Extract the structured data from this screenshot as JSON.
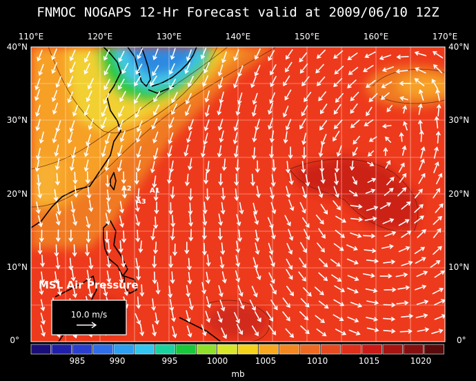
{
  "title": "FNMOC NOGAPS 12-Hr Forecast valid at 2009/06/10 12Z",
  "longitudes": [
    "110°E",
    "120°E",
    "130°E",
    "140°E",
    "150°E",
    "160°E",
    "170°E"
  ],
  "latitudes_left": [
    "40°N",
    "30°N",
    "20°N",
    "10°N",
    "0°"
  ],
  "latitudes_right": [
    "40°N",
    "30°N",
    "20°N",
    "10°N",
    "0°"
  ],
  "variable_label": "MSL Air Pressure",
  "reference_vector_label": "10.0 m/s",
  "points": [
    "A1",
    "A2",
    "A3"
  ],
  "colorbar": {
    "labels": [
      "985",
      "990",
      "995",
      "1000",
      "1005",
      "1010",
      "1015",
      "1020"
    ],
    "unit": "mb",
    "colors": [
      "#1a0d78",
      "#1f1fa8",
      "#2a3fd0",
      "#2f6ee8",
      "#2e9ef0",
      "#33c6f0",
      "#1ad2a0",
      "#17c83a",
      "#8ee02a",
      "#d8e62a",
      "#f4d21a",
      "#f7a81e",
      "#f48820",
      "#ee6a22",
      "#e84a20",
      "#e02f1a",
      "#cc1a16",
      "#a81410",
      "#861010",
      "#5a0a0a"
    ]
  },
  "map_colors": {
    "deep_low": "#2f8ae0",
    "low_cyan": "#44c8e8",
    "green": "#2dc83a",
    "yellow": "#f2e030",
    "orange": "#f7a028",
    "dark_orange": "#f07a24",
    "red": "#ee3a1c",
    "dark_red": "#cc2418"
  }
}
